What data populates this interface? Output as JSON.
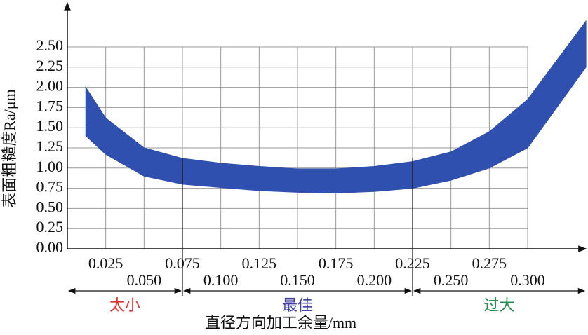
{
  "chart_data": {
    "type": "band",
    "x_label": "直径方向加工余量/mm",
    "y_label": "表面粗糙度Ra/μm",
    "x": [
      0.012,
      0.025,
      0.05,
      0.075,
      0.1,
      0.125,
      0.15,
      0.175,
      0.2,
      0.225,
      0.25,
      0.275,
      0.3,
      0.338
    ],
    "series": [
      {
        "name": "lower",
        "values": [
          1.4,
          1.17,
          0.9,
          0.8,
          0.76,
          0.72,
          0.7,
          0.69,
          0.71,
          0.75,
          0.85,
          1.0,
          1.25,
          2.25
        ]
      },
      {
        "name": "upper",
        "values": [
          2.0,
          1.62,
          1.25,
          1.12,
          1.06,
          1.02,
          0.99,
          0.99,
          1.02,
          1.08,
          1.2,
          1.45,
          1.85,
          2.82
        ]
      }
    ],
    "color": "#3050b0",
    "xlim": [
      0,
      0.3
    ],
    "ylim": [
      0,
      2.5
    ],
    "xticks": [
      0.025,
      {
        "value": 0.05,
        "label": "0.050"
      },
      0.075,
      {
        "value": 0.1,
        "label": "0.100"
      },
      0.125,
      {
        "value": 0.15,
        "label": "0.150"
      },
      0.175,
      {
        "value": 0.2,
        "label": "0.200"
      },
      0.225,
      {
        "value": 0.25,
        "label": "0.250"
      },
      0.275,
      {
        "value": 0.3,
        "label": "0.300"
      }
    ],
    "yticks": [
      {
        "value": 0,
        "label": "0.00"
      },
      0.25,
      {
        "value": 0.5,
        "label": "0.50"
      },
      0.75,
      {
        "value": 1,
        "label": "1.00"
      },
      1.25,
      {
        "value": 1.5,
        "label": "1.50"
      },
      1.75,
      {
        "value": 2,
        "label": "2.00"
      },
      2.25,
      {
        "value": 2.5,
        "label": "2.50"
      }
    ],
    "grid": true,
    "regions": [
      {
        "label": "太小",
        "color": "#e03030",
        "from": 0,
        "to": 0.075
      },
      {
        "label": "最佳",
        "color": "#4040a0",
        "from": 0.075,
        "to": 0.225
      },
      {
        "label": "过大",
        "color": "#209050",
        "from": 0.225,
        "to": 0.338
      }
    ]
  }
}
